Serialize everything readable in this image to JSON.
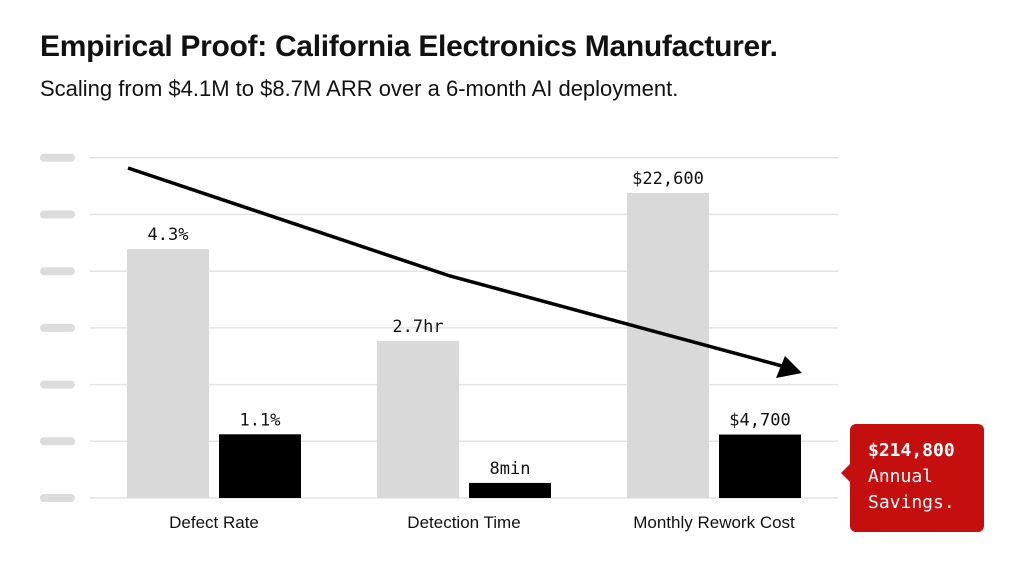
{
  "title": "Empirical Proof: California Electronics Manufacturer.",
  "subtitle": "Scaling from $4.1M to $8.7M ARR over a 6-month AI deployment.",
  "chart_data": {
    "type": "bar",
    "categories": [
      "Defect Rate",
      "Detection Time",
      "Monthly Rework Cost"
    ],
    "series": [
      {
        "values": [
          4.3,
          162,
          22600
        ],
        "labels": [
          "4.3%",
          "2.7hr",
          "$22,600"
        ],
        "color": "#d9d9d9"
      },
      {
        "values": [
          1.1,
          8,
          4700
        ],
        "labels": [
          "1.1%",
          "8min",
          "$4,700"
        ],
        "color": "#000000"
      }
    ],
    "grid": true,
    "trend_arrow": "downward"
  },
  "callout": {
    "value": "$214,800",
    "line1": "Annual",
    "line2": "Savings.",
    "color": "#c50f0f"
  }
}
